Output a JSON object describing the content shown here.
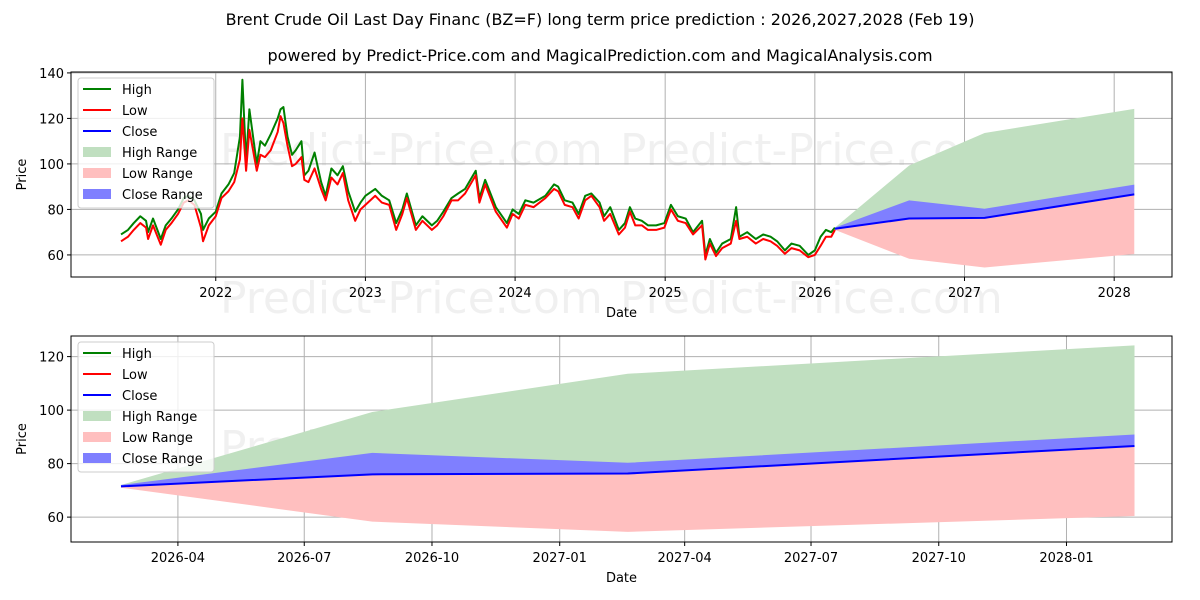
{
  "header": {
    "title": "Brent Crude Oil Last Day Financ (BZ=F) long term price prediction : 2026,2027,2028 (Feb 19)",
    "subtitle": "powered by Predict-Price.com and MagicalPrediction.com and MagicalAnalysis.com"
  },
  "watermark": "Predict-Price.com",
  "colors": {
    "high": "#008000",
    "low": "#ff0000",
    "close": "#0000ff",
    "high_range": "#c0dfc0",
    "low_range": "#ffbfbf",
    "close_range": "#7f7fff",
    "grid": "#b0b0b0"
  },
  "legend_entries": [
    "High",
    "Low",
    "Close",
    "High Range",
    "Low Range",
    "Close Range"
  ],
  "chart_data": [
    {
      "type": "line",
      "xlabel": "Date",
      "ylabel": "Price",
      "xlim": [
        "2021-01-13",
        "2028-05-21"
      ],
      "ylim": [
        50.3,
        140.4
      ],
      "grid": true,
      "legend": "upper-left",
      "yticks": [
        60,
        80,
        100,
        120,
        140
      ],
      "xticks": [
        {
          "date": "2022-01-01",
          "label": "2022"
        },
        {
          "date": "2023-01-01",
          "label": "2023"
        },
        {
          "date": "2024-01-01",
          "label": "2024"
        },
        {
          "date": "2025-01-01",
          "label": "2025"
        },
        {
          "date": "2026-01-01",
          "label": "2026"
        },
        {
          "date": "2027-01-01",
          "label": "2027"
        },
        {
          "date": "2028-01-01",
          "label": "2028"
        }
      ],
      "history": {
        "dates": [
          "2021-05-15",
          "2021-06-01",
          "2021-06-15",
          "2021-07-01",
          "2021-07-15",
          "2021-07-20",
          "2021-08-01",
          "2021-08-20",
          "2021-09-01",
          "2021-09-15",
          "2021-10-01",
          "2021-10-15",
          "2021-10-26",
          "2021-11-10",
          "2021-11-26",
          "2021-12-01",
          "2021-12-15",
          "2022-01-01",
          "2022-01-15",
          "2022-02-01",
          "2022-02-15",
          "2022-03-01",
          "2022-03-07",
          "2022-03-16",
          "2022-03-24",
          "2022-04-11",
          "2022-04-20",
          "2022-05-01",
          "2022-05-15",
          "2022-06-01",
          "2022-06-08",
          "2022-06-15",
          "2022-06-25",
          "2022-07-06",
          "2022-07-15",
          "2022-07-29",
          "2022-08-05",
          "2022-08-15",
          "2022-08-30",
          "2022-09-15",
          "2022-09-26",
          "2022-10-10",
          "2022-10-25",
          "2022-11-07",
          "2022-11-20",
          "2022-12-07",
          "2022-12-20",
          "2023-01-01",
          "2023-01-25",
          "2023-02-10",
          "2023-02-28",
          "2023-03-17",
          "2023-04-01",
          "2023-04-12",
          "2023-05-04",
          "2023-05-20",
          "2023-06-12",
          "2023-06-25",
          "2023-07-10",
          "2023-07-30",
          "2023-08-15",
          "2023-09-01",
          "2023-09-27",
          "2023-10-06",
          "2023-10-20",
          "2023-11-15",
          "2023-12-12",
          "2023-12-26",
          "2024-01-10",
          "2024-01-26",
          "2024-02-15",
          "2024-03-15",
          "2024-04-05",
          "2024-04-15",
          "2024-05-01",
          "2024-05-20",
          "2024-06-04",
          "2024-06-20",
          "2024-07-05",
          "2024-07-25",
          "2024-08-05",
          "2024-08-20",
          "2024-09-10",
          "2024-09-25",
          "2024-10-07",
          "2024-10-20",
          "2024-11-05",
          "2024-11-20",
          "2024-12-10",
          "2024-12-30",
          "2025-01-15",
          "2025-02-01",
          "2025-02-20",
          "2025-03-10",
          "2025-04-01",
          "2025-04-09",
          "2025-04-20",
          "2025-05-05",
          "2025-05-20",
          "2025-06-10",
          "2025-06-23",
          "2025-07-01",
          "2025-07-20",
          "2025-08-10",
          "2025-08-28",
          "2025-09-15",
          "2025-10-01",
          "2025-10-20",
          "2025-11-05",
          "2025-11-25",
          "2025-12-16",
          "2026-01-01",
          "2026-01-15",
          "2026-01-28",
          "2026-02-10",
          "2026-02-19"
        ],
        "high": [
          69,
          71,
          74,
          77,
          75,
          70,
          76,
          67,
          73,
          76,
          80,
          85,
          86,
          84,
          78,
          71,
          76,
          79,
          87,
          91,
          96,
          112,
          137,
          101,
          124,
          100,
          110,
          108,
          113,
          120,
          124,
          125,
          112,
          104,
          106,
          110,
          95,
          97,
          105,
          92,
          86,
          98,
          95,
          99,
          88,
          79,
          83,
          86,
          89,
          86,
          84,
          74,
          80,
          87,
          73,
          77,
          73,
          75,
          79,
          85,
          87,
          89,
          97,
          85,
          93,
          81,
          74,
          80,
          78,
          84,
          83,
          86,
          91,
          90,
          84,
          83,
          78,
          86,
          87,
          83,
          77,
          81,
          71,
          74,
          81,
          76,
          75,
          73,
          73,
          74,
          82,
          77,
          76,
          70,
          75,
          60,
          67,
          61,
          65,
          67,
          81,
          68,
          70,
          67,
          69,
          68,
          66,
          62,
          65,
          64,
          60,
          62,
          68,
          71,
          70,
          72
        ],
        "low": [
          66,
          68,
          71,
          74,
          72,
          67,
          73,
          64.5,
          71,
          74,
          78,
          83,
          84,
          82,
          72,
          66,
          73,
          77,
          85,
          88,
          92,
          102,
          120,
          97,
          115,
          97,
          104,
          103,
          106,
          114,
          121,
          118,
          108,
          99,
          100,
          103,
          93,
          92,
          98,
          89,
          84,
          94,
          91,
          96,
          84,
          75,
          80,
          82,
          86,
          83,
          82,
          71,
          78,
          85,
          71,
          75,
          71,
          73,
          77,
          84,
          84,
          87,
          95,
          83,
          91,
          79,
          72,
          78,
          76,
          82,
          81,
          85,
          89,
          88,
          82,
          81,
          76,
          84,
          86,
          81,
          75,
          78,
          69,
          72,
          79,
          73,
          73,
          71,
          71,
          72,
          80,
          75,
          74,
          69,
          73,
          58,
          65,
          59.5,
          63,
          65,
          75,
          67,
          68,
          65,
          67,
          66,
          64,
          60.5,
          63,
          62,
          59,
          60,
          64,
          68,
          68,
          71
        ]
      },
      "forecast": {
        "dates": [
          "2026-02-19",
          "2026-08-19",
          "2027-02-19",
          "2028-02-19"
        ],
        "close": [
          71.5,
          76,
          76.3,
          86.6
        ],
        "close_range_upper": [
          72,
          84,
          80.3,
          90.9
        ],
        "high_range_upper": [
          72,
          99.3,
          113.6,
          124.2
        ],
        "low_range_lower": [
          71,
          58.3,
          54.5,
          60.4
        ]
      }
    },
    {
      "type": "area",
      "xlabel": "Date",
      "ylabel": "Price",
      "xlim": [
        "2026-01-14",
        "2028-03-17"
      ],
      "ylim": [
        50.7,
        127.7
      ],
      "grid": true,
      "legend": "upper-left",
      "yticks": [
        60,
        80,
        100,
        120
      ],
      "xticks": [
        {
          "date": "2026-04-01",
          "label": "2026-04"
        },
        {
          "date": "2026-07-01",
          "label": "2026-07"
        },
        {
          "date": "2026-10-01",
          "label": "2026-10"
        },
        {
          "date": "2027-01-01",
          "label": "2027-01"
        },
        {
          "date": "2027-04-01",
          "label": "2027-04"
        },
        {
          "date": "2027-07-01",
          "label": "2027-07"
        },
        {
          "date": "2027-10-01",
          "label": "2027-10"
        },
        {
          "date": "2028-01-01",
          "label": "2028-01"
        }
      ],
      "forecast": {
        "dates": [
          "2026-02-19",
          "2026-08-19",
          "2027-02-19",
          "2028-02-19"
        ],
        "close": [
          71.5,
          76,
          76.3,
          86.6
        ],
        "close_range_upper": [
          72,
          84,
          80.3,
          90.9
        ],
        "high_range_upper": [
          72,
          99.3,
          113.6,
          124.2
        ],
        "low_range_lower": [
          71,
          58.3,
          54.5,
          60.4
        ]
      }
    }
  ]
}
